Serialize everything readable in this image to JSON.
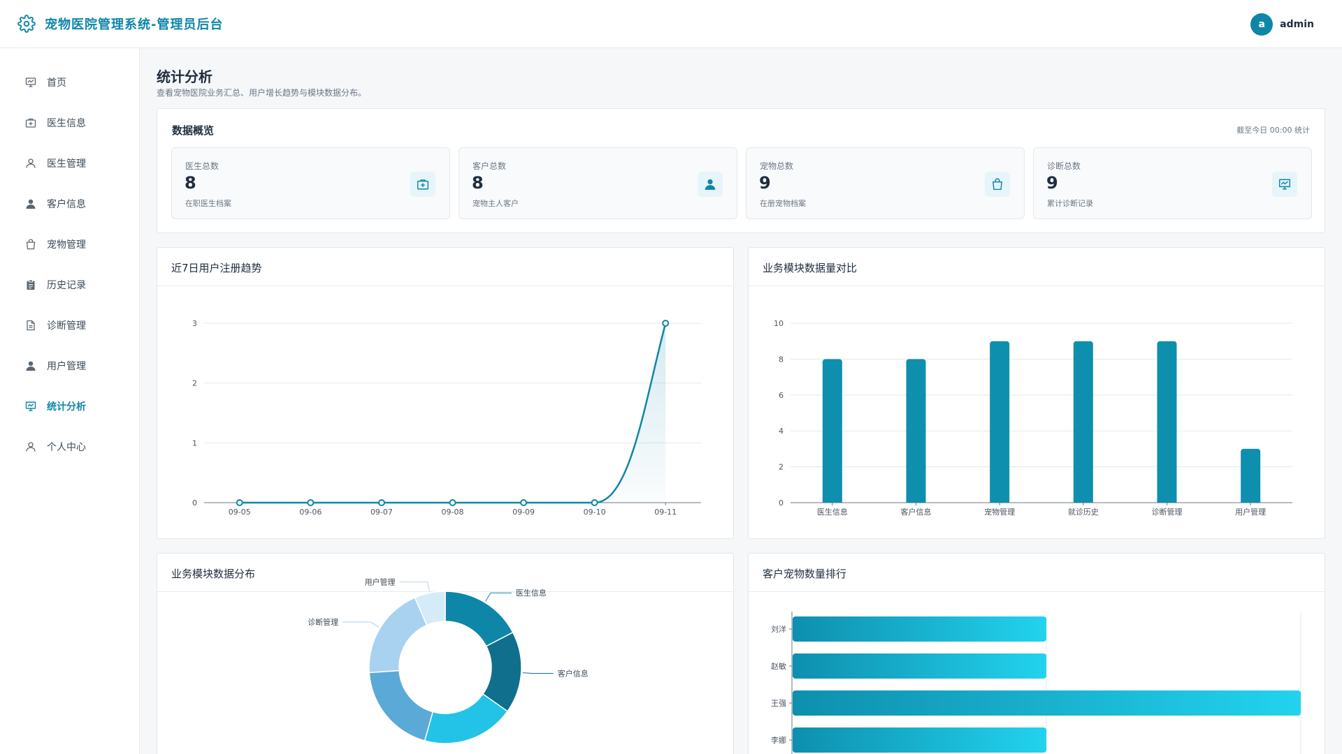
{
  "header": {
    "title": "宠物医院管理系统-管理员后台",
    "avatar_letter": "a",
    "username": "admin",
    "accent": "#0e86a8"
  },
  "sidebar": {
    "items": [
      {
        "label": "首页",
        "icon": "presentation-board-icon",
        "active": false
      },
      {
        "label": "医生信息",
        "icon": "medical-kit-icon",
        "active": false
      },
      {
        "label": "医生管理",
        "icon": "user-outline-icon",
        "active": false
      },
      {
        "label": "客户信息",
        "icon": "user-filled-icon",
        "active": false
      },
      {
        "label": "宠物管理",
        "icon": "shopping-bag-icon",
        "active": false
      },
      {
        "label": "历史记录",
        "icon": "clipboard-icon",
        "active": false
      },
      {
        "label": "诊断管理",
        "icon": "document-icon",
        "active": false
      },
      {
        "label": "用户管理",
        "icon": "user-filled-icon",
        "active": false
      },
      {
        "label": "统计分析",
        "icon": "presentation-board-icon",
        "active": true
      },
      {
        "label": "个人中心",
        "icon": "user-outline-icon",
        "active": false
      }
    ]
  },
  "page": {
    "title": "统计分析",
    "description": "查看宠物医院业务汇总、用户增长趋势与模块数据分布。"
  },
  "overview": {
    "title": "数据概览",
    "note": "截至今日 00:00 统计",
    "stats": [
      {
        "label": "医生总数",
        "value": "8",
        "sub": "在职医生档案",
        "icon": "medical-kit-icon"
      },
      {
        "label": "客户总数",
        "value": "8",
        "sub": "宠物主人客户",
        "icon": "user-filled-icon"
      },
      {
        "label": "宠物总数",
        "value": "9",
        "sub": "在册宠物档案",
        "icon": "shopping-bag-icon"
      },
      {
        "label": "诊断总数",
        "value": "9",
        "sub": "累计诊断记录",
        "icon": "presentation-board-icon"
      }
    ]
  },
  "panels": {
    "trend_title": "近7日用户注册趋势",
    "modules_bar_title": "业务模块数据量对比",
    "donut_title": "业务模块数据分布",
    "ranking_title": "客户宠物数量排行"
  },
  "chart_data": [
    {
      "type": "line",
      "x": [
        "09-05",
        "09-06",
        "09-07",
        "09-08",
        "09-09",
        "09-10",
        "09-11"
      ],
      "series": [
        {
          "values": [
            0,
            0,
            0,
            0,
            0,
            0,
            3
          ]
        }
      ],
      "ylim": [
        0,
        3
      ],
      "yticks": [
        0,
        1,
        2,
        3
      ],
      "grid": true,
      "color": "#0e86a8"
    },
    {
      "type": "bar",
      "categories": [
        "医生信息",
        "客户信息",
        "宠物管理",
        "就诊历史",
        "诊断管理",
        "用户管理"
      ],
      "values": [
        8,
        8,
        9,
        9,
        9,
        3
      ],
      "ylim": [
        0,
        10
      ],
      "yticks": [
        0,
        2,
        4,
        6,
        8,
        10
      ],
      "grid": true,
      "color": "#0e8fae"
    },
    {
      "type": "pie",
      "categories": [
        "医生信息",
        "客户信息",
        "宠物管理",
        "就诊历史",
        "诊断管理",
        "用户管理"
      ],
      "values": [
        8,
        8,
        9,
        9,
        9,
        3
      ],
      "visible_labels": [
        "医生信息",
        "客户信息",
        "诊断管理",
        "用户管理"
      ],
      "colors": [
        "#0e86a8",
        "#0f6f8c",
        "#22c3e6",
        "#5aa9d6",
        "#a8d2f0",
        "#d6ebf8"
      ]
    },
    {
      "type": "bar",
      "orientation": "horizontal",
      "categories": [
        "刘洋",
        "赵敏",
        "王强",
        "李娜"
      ],
      "values": [
        1,
        1,
        2,
        1
      ],
      "xlim": [
        0,
        2
      ],
      "colors": [
        "#0e8fae",
        "#22d3ee"
      ]
    }
  ]
}
